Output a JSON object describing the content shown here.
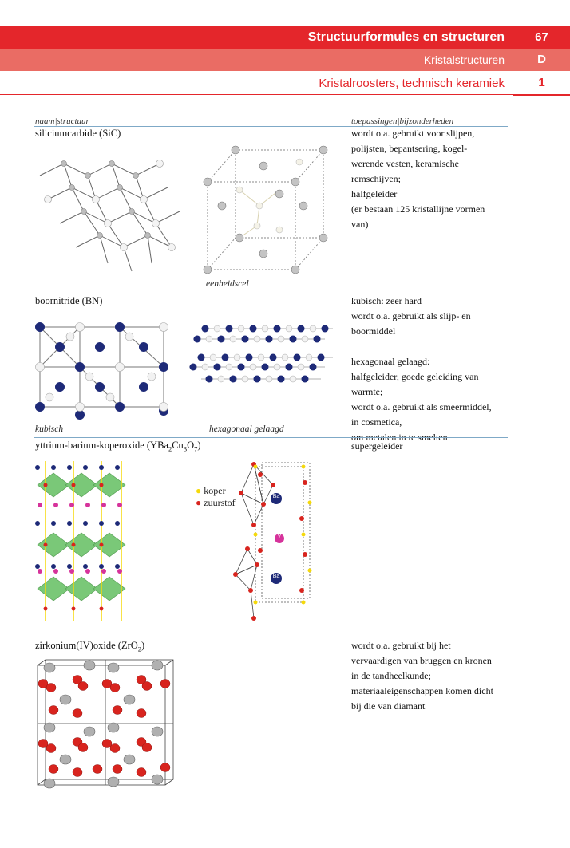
{
  "header": {
    "title": "Structuurformules en structuren",
    "page_number": "67",
    "section": "Kristalstructuren",
    "section_letter": "D",
    "subsection": "Kristalroosters, technisch keramiek",
    "subsection_number": "1"
  },
  "columns": {
    "left": "naam|structuur",
    "right": "toepassingen|bijzonderheden"
  },
  "entries": {
    "sic": {
      "name": "siliciumcarbide (SiC)",
      "caption": "eenheidscel",
      "lines": [
        "wordt o.a. gebruikt voor slijpen,",
        "polijsten, bepantsering, kogel-",
        "werende vesten, keramische",
        "remschijven;",
        "halfgeleider",
        "(er bestaan 125 kristallijne vormen",
        "van)"
      ]
    },
    "bn": {
      "name": "boornitride (BN)",
      "caption_left": "kubisch",
      "caption_right": "hexagonaal gelaagd",
      "lines": [
        "kubisch: zeer hard",
        "wordt o.a. gebruikt als slijp- en",
        "boormiddel",
        "",
        "hexagonaal gelaagd:",
        "halfgeleider, goede geleiding van",
        "warmte;",
        "wordt o.a. gebruikt als smeermiddel,",
        "in cosmetica,",
        "om metalen in te smelten"
      ]
    },
    "ybco": {
      "name_prefix": "yttrium-barium-koperoxide (YBa",
      "name_sub1": "2",
      "name_mid": "Cu",
      "name_sub2": "3",
      "name_o": "O",
      "name_sub3": "7",
      "name_suffix": ")",
      "legend": [
        "koper",
        "zuurstof"
      ],
      "atom_labels": [
        "Ba",
        "Y",
        "Ba"
      ],
      "lines": [
        "supergeleider"
      ]
    },
    "zro2": {
      "name_prefix": "zirkonium(IV)oxide (ZrO",
      "name_sub": "2",
      "name_suffix": ")",
      "lines": [
        "wordt o.a. gebruikt bij het",
        "vervaardigen van bruggen en kronen",
        "in de tandheelkunde;",
        "materiaaleigenschappen komen dicht",
        "bij die van diamant"
      ]
    }
  },
  "colors": {
    "header_red": "#e4262b",
    "header_salmon": "#ea6c64",
    "rule_blue": "#7fa9c7",
    "boron_navy": "#1e2a78",
    "copper_yellow": "#f5d90a",
    "oxygen_red": "#d8241e",
    "yttrium_magenta": "#d6339b",
    "polyhedra_green": "#6cc36a"
  }
}
